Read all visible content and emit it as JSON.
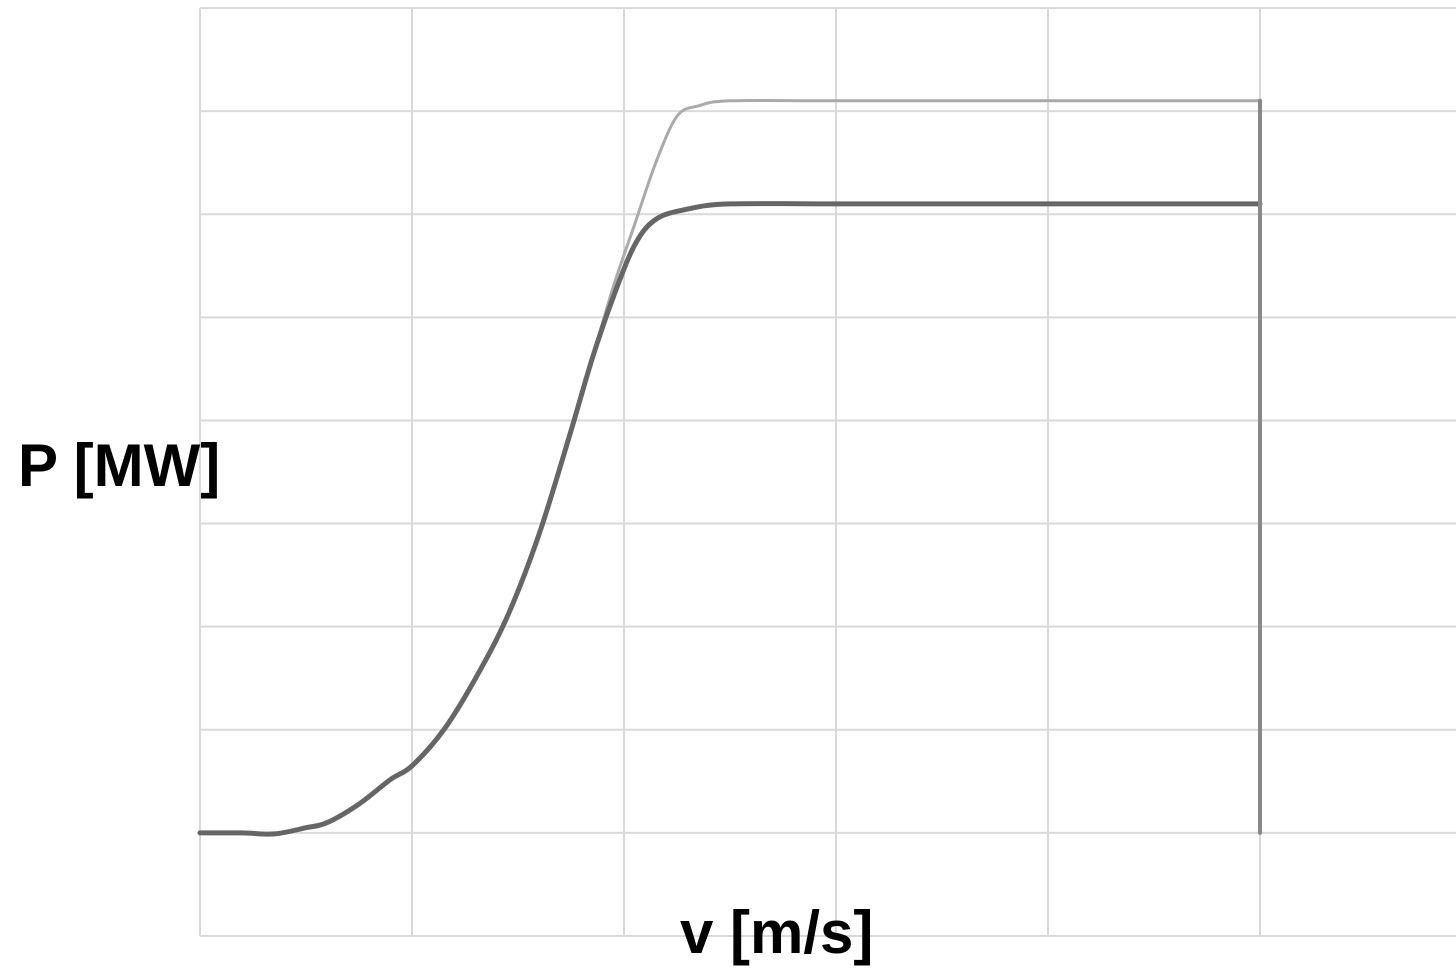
{
  "chart_data": {
    "type": "line",
    "title": "",
    "xlabel": "v [m/s]",
    "ylabel": "P [MW]",
    "xlim": [
      0,
      6
    ],
    "ylim": [
      -1,
      8
    ],
    "grid": true,
    "legend": "none",
    "x_tick_labels_shown": false,
    "y_tick_labels_shown": false,
    "series": [
      {
        "color": "#aaaaaa",
        "points": [
          [
            0,
            0
          ],
          [
            0.2,
            0
          ],
          [
            0.35,
            -0.01
          ],
          [
            0.5,
            0.05
          ],
          [
            0.6,
            0.1
          ],
          [
            0.75,
            0.28
          ],
          [
            0.9,
            0.52
          ],
          [
            1.0,
            0.65
          ],
          [
            1.15,
            1.0
          ],
          [
            1.3,
            1.5
          ],
          [
            1.45,
            2.1
          ],
          [
            1.6,
            2.9
          ],
          [
            1.75,
            3.9
          ],
          [
            1.85,
            4.6
          ],
          [
            1.95,
            5.3
          ],
          [
            2.05,
            5.9
          ],
          [
            2.15,
            6.5
          ],
          [
            2.25,
            6.95
          ],
          [
            2.35,
            7.05
          ],
          [
            2.5,
            7.1
          ],
          [
            3.0,
            7.1
          ],
          [
            4.0,
            7.1
          ],
          [
            5.0,
            7.1
          ]
        ]
      },
      {
        "color": "#666666",
        "points": [
          [
            0,
            0
          ],
          [
            0.2,
            0
          ],
          [
            0.35,
            -0.01
          ],
          [
            0.5,
            0.05
          ],
          [
            0.6,
            0.1
          ],
          [
            0.75,
            0.28
          ],
          [
            0.9,
            0.52
          ],
          [
            1.0,
            0.65
          ],
          [
            1.15,
            1.0
          ],
          [
            1.3,
            1.5
          ],
          [
            1.45,
            2.1
          ],
          [
            1.6,
            2.9
          ],
          [
            1.75,
            3.9
          ],
          [
            1.85,
            4.6
          ],
          [
            1.95,
            5.2
          ],
          [
            2.05,
            5.7
          ],
          [
            2.15,
            5.95
          ],
          [
            2.3,
            6.05
          ],
          [
            2.5,
            6.1
          ],
          [
            3.0,
            6.1
          ],
          [
            4.0,
            6.1
          ],
          [
            5.0,
            6.1
          ]
        ]
      },
      {
        "color": "#888888",
        "points": [
          [
            5.0,
            7.1
          ],
          [
            5.0,
            0
          ]
        ]
      }
    ]
  }
}
